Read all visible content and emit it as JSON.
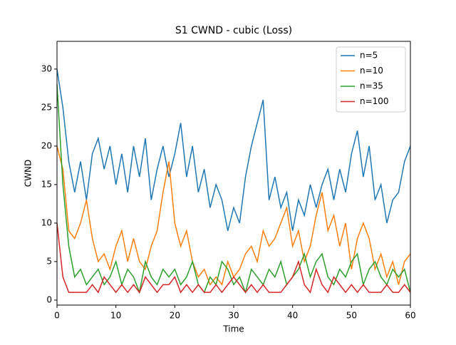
{
  "chart_data": {
    "type": "line",
    "title": "S1 CWND - cubic (Loss)",
    "x_label": "Time",
    "y_label": "CWND",
    "x": [
      0,
      1,
      2,
      3,
      4,
      5,
      6,
      7,
      8,
      9,
      10,
      11,
      12,
      13,
      14,
      15,
      16,
      17,
      18,
      19,
      20,
      21,
      22,
      23,
      24,
      25,
      26,
      27,
      28,
      29,
      30,
      31,
      32,
      33,
      34,
      35,
      36,
      37,
      38,
      39,
      40,
      41,
      42,
      43,
      44,
      45,
      46,
      47,
      48,
      49,
      50,
      51,
      52,
      53,
      54,
      55,
      56,
      57,
      58,
      59,
      60
    ],
    "series": [
      {
        "name": "n=5",
        "color": "#1f77b4",
        "values": [
          30,
          25,
          18,
          14,
          18,
          13,
          19,
          21,
          17,
          20,
          15,
          19,
          14,
          20,
          16,
          21,
          13,
          17,
          20,
          16,
          19,
          23,
          16,
          20,
          14,
          17,
          12,
          15,
          13,
          9,
          12,
          10,
          16,
          20,
          23,
          26,
          13,
          16,
          12,
          14,
          9,
          13,
          11,
          15,
          12,
          15,
          17,
          13,
          17,
          14,
          19,
          22,
          16,
          20,
          13,
          15,
          10,
          13,
          14,
          18,
          20
        ]
      },
      {
        "name": "n=10",
        "color": "#ff7f0e",
        "values": [
          20,
          17,
          9,
          8,
          10,
          13,
          8,
          5,
          6,
          4,
          7,
          9,
          5,
          8,
          5,
          4,
          7,
          9,
          14,
          18,
          10,
          7,
          9,
          5,
          3,
          4,
          2,
          3,
          2,
          5,
          3,
          4,
          6,
          7,
          5,
          9,
          7,
          8,
          10,
          12,
          7,
          9,
          5,
          7,
          11,
          14,
          9,
          11,
          7,
          10,
          4,
          8,
          10,
          8,
          4,
          6,
          3,
          5,
          2,
          5,
          6
        ]
      },
      {
        "name": "n=35",
        "color": "#2ca02c",
        "values": [
          28,
          15,
          7,
          3,
          4,
          2,
          3,
          4,
          2,
          3,
          5,
          2,
          4,
          3,
          1,
          5,
          3,
          2,
          4,
          3,
          4,
          2,
          3,
          5,
          2,
          1,
          3,
          2,
          5,
          4,
          2,
          3,
          1,
          4,
          3,
          2,
          4,
          3,
          5,
          2,
          3,
          4,
          6,
          3,
          5,
          6,
          3,
          2,
          4,
          3,
          5,
          6,
          2,
          4,
          5,
          3,
          2,
          4,
          3,
          4,
          1
        ]
      },
      {
        "name": "n=100",
        "color": "#d62728",
        "values": [
          10,
          3,
          1,
          1,
          1,
          1,
          2,
          1,
          3,
          2,
          1,
          2,
          1,
          2,
          1,
          3,
          2,
          1,
          2,
          2,
          3,
          1,
          2,
          1,
          2,
          1,
          1,
          2,
          1,
          2,
          3,
          2,
          1,
          2,
          1,
          2,
          1,
          1,
          1,
          2,
          3,
          5,
          2,
          1,
          4,
          2,
          1,
          3,
          2,
          1,
          2,
          1,
          2,
          1,
          1,
          1,
          2,
          1,
          1,
          2,
          1
        ]
      }
    ],
    "xlim": [
      0,
      60
    ],
    "xticks": [
      0,
      10,
      20,
      30,
      40,
      50,
      60
    ],
    "ylim": [
      -0.65,
      33.6
    ],
    "yticks": [
      0,
      5,
      10,
      15,
      20,
      25,
      30
    ],
    "legend": "upper right"
  }
}
